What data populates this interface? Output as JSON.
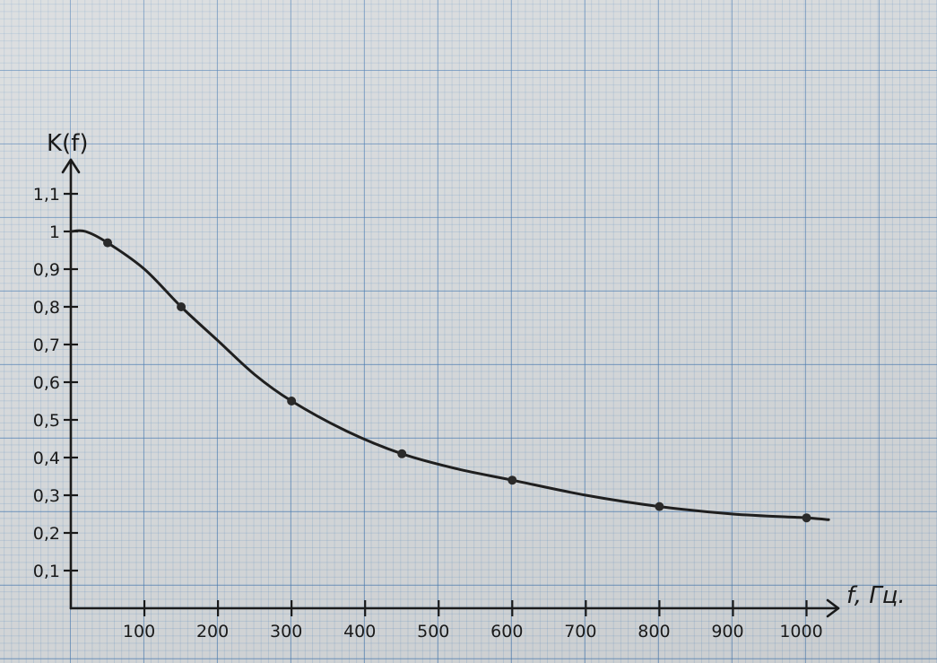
{
  "chart_data": {
    "type": "line",
    "title": "",
    "xlabel": "f, Гц.",
    "ylabel": "K(f)",
    "x_ticks": [
      "100",
      "200",
      "300",
      "400",
      "500",
      "600",
      "700",
      "800",
      "900",
      "1000"
    ],
    "y_ticks": [
      "0,1",
      "0,2",
      "0,3",
      "0,4",
      "0,5",
      "0,6",
      "0,7",
      "0,8",
      "0,9",
      "1",
      "1,1"
    ],
    "xlim": [
      0,
      1000
    ],
    "ylim": [
      0,
      1.1
    ],
    "grid": true,
    "series": [
      {
        "points": [
          [
            50,
            0.97
          ],
          [
            150,
            0.8
          ],
          [
            300,
            0.55
          ],
          [
            450,
            0.41
          ],
          [
            600,
            0.34
          ],
          [
            800,
            0.27
          ],
          [
            1000,
            0.24
          ]
        ],
        "curve": [
          [
            0,
            1.0
          ],
          [
            20,
            1.0
          ],
          [
            50,
            0.97
          ],
          [
            100,
            0.9
          ],
          [
            150,
            0.8
          ],
          [
            200,
            0.71
          ],
          [
            250,
            0.62
          ],
          [
            300,
            0.55
          ],
          [
            375,
            0.47
          ],
          [
            450,
            0.41
          ],
          [
            525,
            0.37
          ],
          [
            600,
            0.34
          ],
          [
            700,
            0.3
          ],
          [
            800,
            0.27
          ],
          [
            900,
            0.25
          ],
          [
            1000,
            0.24
          ],
          [
            1030,
            0.235
          ]
        ]
      }
    ]
  }
}
